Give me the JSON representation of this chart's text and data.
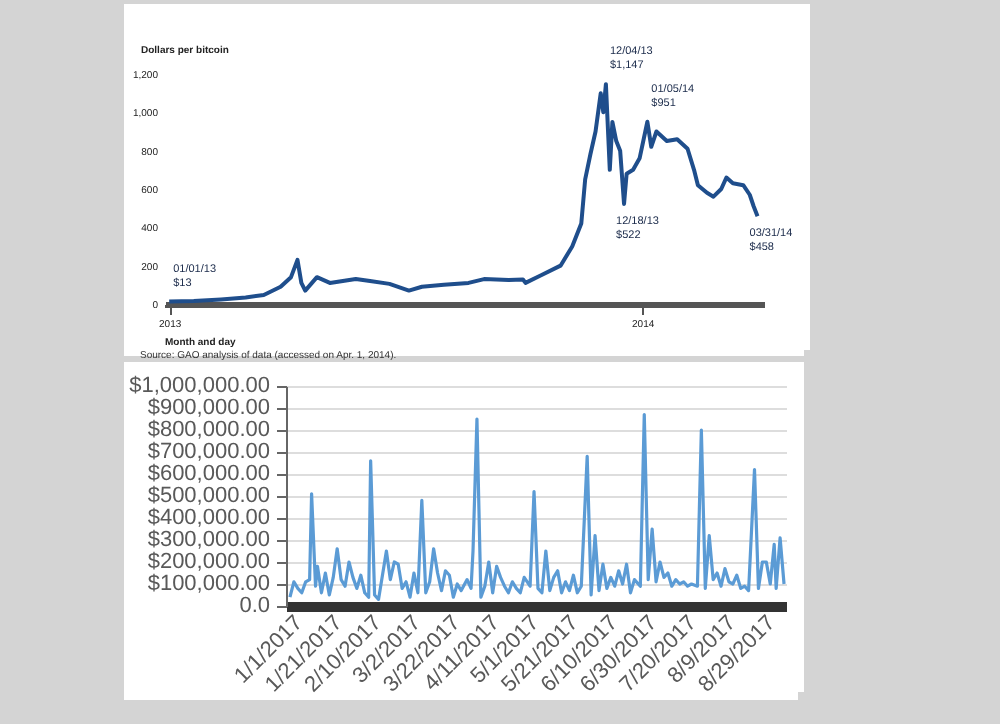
{
  "chart_data": [
    {
      "type": "line",
      "ylabel": "Dollars per bitcoin",
      "xlabel": "Month and day",
      "x": [
        "2013-01-01",
        "2013-01-20",
        "2013-02-10",
        "2013-03-01",
        "2013-03-15",
        "2013-03-28",
        "2013-04-05",
        "2013-04-10",
        "2013-04-13",
        "2013-04-16",
        "2013-04-25",
        "2013-05-05",
        "2013-05-15",
        "2013-05-25",
        "2013-06-05",
        "2013-06-20",
        "2013-07-05",
        "2013-07-15",
        "2013-08-01",
        "2013-08-20",
        "2013-09-01",
        "2013-09-20",
        "2013-10-01",
        "2013-10-03",
        "2013-10-15",
        "2013-10-30",
        "2013-11-08",
        "2013-11-15",
        "2013-11-18",
        "2013-11-22",
        "2013-11-26",
        "2013-11-30",
        "2013-12-02",
        "2013-12-04",
        "2013-12-07",
        "2013-12-09",
        "2013-12-12",
        "2013-12-15",
        "2013-12-18",
        "2013-12-20",
        "2013-12-25",
        "2013-12-30",
        "2014-01-05",
        "2014-01-08",
        "2014-01-12",
        "2014-01-20",
        "2014-01-28",
        "2014-02-05",
        "2014-02-10",
        "2014-02-13",
        "2014-02-20",
        "2014-02-25",
        "2014-03-03",
        "2014-03-07",
        "2014-03-12",
        "2014-03-20",
        "2014-03-25",
        "2014-03-28",
        "2014-03-31"
      ],
      "series": [
        {
          "color": "#1f4e8c",
          "values": [
            13,
            16,
            24,
            34,
            47,
            90,
            140,
            230,
            110,
            70,
            140,
            110,
            120,
            130,
            120,
            105,
            70,
            90,
            100,
            110,
            130,
            125,
            128,
            110,
            150,
            200,
            300,
            420,
            650,
            780,
            900,
            1100,
            1000,
            1147,
            700,
            950,
            850,
            800,
            522,
            680,
            700,
            760,
            951,
            820,
            900,
            850,
            860,
            810,
            700,
            620,
            580,
            560,
            600,
            660,
            630,
            620,
            570,
            510,
            458
          ]
        }
      ],
      "xlim": [
        "2012-12-28",
        "2014-04-05"
      ],
      "xticks": [
        {
          "value": "2013-01-01",
          "label": "2013"
        },
        {
          "value": "2014-01-01",
          "label": "2014"
        }
      ],
      "ylim": [
        0,
        1200
      ],
      "yticks": [
        0,
        200,
        400,
        600,
        800,
        {
          "value": 1000,
          "label": "1,000"
        },
        {
          "value": 1200,
          "label": "1,200"
        }
      ],
      "grid": false,
      "annotations": [
        {
          "text": "01/01/13\n$13",
          "x": "2013-01-01",
          "y": 13
        },
        {
          "text": "12/04/13\n$1,147",
          "x": "2013-12-04",
          "y": 1147
        },
        {
          "text": "12/18/13\n$522",
          "x": "2013-12-18",
          "y": 522
        },
        {
          "text": "01/05/14\n$951",
          "x": "2014-01-05",
          "y": 951
        },
        {
          "text": "03/31/14\n$458",
          "x": "2014-03-31",
          "y": 458
        },
        "Source: GAO analysis of data (accessed on Apr. 1, 2014)."
      ]
    },
    {
      "type": "line",
      "x": [
        "2017-01-01",
        "2017-01-03",
        "2017-01-05",
        "2017-01-07",
        "2017-01-09",
        "2017-01-11",
        "2017-01-12",
        "2017-01-14",
        "2017-01-15",
        "2017-01-17",
        "2017-01-19",
        "2017-01-21",
        "2017-01-23",
        "2017-01-25",
        "2017-01-27",
        "2017-01-29",
        "2017-01-31",
        "2017-02-02",
        "2017-02-04",
        "2017-02-06",
        "2017-02-08",
        "2017-02-10",
        "2017-02-11",
        "2017-02-13",
        "2017-02-15",
        "2017-02-17",
        "2017-02-19",
        "2017-02-21",
        "2017-02-23",
        "2017-02-25",
        "2017-02-27",
        "2017-03-01",
        "2017-03-03",
        "2017-03-05",
        "2017-03-07",
        "2017-03-09",
        "2017-03-11",
        "2017-03-13",
        "2017-03-15",
        "2017-03-17",
        "2017-03-19",
        "2017-03-21",
        "2017-03-23",
        "2017-03-25",
        "2017-03-27",
        "2017-03-29",
        "2017-04-01",
        "2017-04-03",
        "2017-04-04",
        "2017-04-06",
        "2017-04-08",
        "2017-04-10",
        "2017-04-12",
        "2017-04-14",
        "2017-04-16",
        "2017-04-18",
        "2017-04-20",
        "2017-04-22",
        "2017-04-24",
        "2017-04-26",
        "2017-04-28",
        "2017-04-30",
        "2017-05-03",
        "2017-05-05",
        "2017-05-07",
        "2017-05-09",
        "2017-05-11",
        "2017-05-13",
        "2017-05-15",
        "2017-05-17",
        "2017-05-19",
        "2017-05-21",
        "2017-05-23",
        "2017-05-25",
        "2017-05-27",
        "2017-05-29",
        "2017-06-01",
        "2017-06-03",
        "2017-06-05",
        "2017-06-07",
        "2017-06-09",
        "2017-06-11",
        "2017-06-13",
        "2017-06-15",
        "2017-06-17",
        "2017-06-19",
        "2017-06-21",
        "2017-06-23",
        "2017-06-25",
        "2017-06-28",
        "2017-06-30",
        "2017-07-02",
        "2017-07-04",
        "2017-07-06",
        "2017-07-08",
        "2017-07-10",
        "2017-07-12",
        "2017-07-14",
        "2017-07-16",
        "2017-07-18",
        "2017-07-20",
        "2017-07-22",
        "2017-07-24",
        "2017-07-27",
        "2017-07-29",
        "2017-07-31",
        "2017-08-02",
        "2017-08-04",
        "2017-08-06",
        "2017-08-08",
        "2017-08-10",
        "2017-08-12",
        "2017-08-14",
        "2017-08-16",
        "2017-08-18",
        "2017-08-20",
        "2017-08-22",
        "2017-08-25",
        "2017-08-27",
        "2017-08-29",
        "2017-08-31",
        "2017-09-02",
        "2017-09-04",
        "2017-09-05",
        "2017-09-07",
        "2017-09-09"
      ],
      "series": [
        {
          "color": "#5b9bd5",
          "values": [
            40000,
            110000,
            80000,
            60000,
            110000,
            120000,
            510000,
            90000,
            180000,
            60000,
            150000,
            50000,
            130000,
            260000,
            120000,
            90000,
            200000,
            130000,
            80000,
            140000,
            60000,
            40000,
            660000,
            50000,
            30000,
            140000,
            250000,
            120000,
            200000,
            190000,
            80000,
            110000,
            40000,
            150000,
            60000,
            480000,
            60000,
            110000,
            260000,
            150000,
            70000,
            160000,
            140000,
            40000,
            100000,
            70000,
            120000,
            80000,
            250000,
            850000,
            40000,
            90000,
            200000,
            60000,
            180000,
            130000,
            90000,
            60000,
            110000,
            80000,
            60000,
            130000,
            90000,
            520000,
            80000,
            60000,
            250000,
            70000,
            130000,
            160000,
            60000,
            110000,
            70000,
            140000,
            60000,
            90000,
            680000,
            50000,
            320000,
            70000,
            190000,
            80000,
            130000,
            90000,
            160000,
            100000,
            190000,
            60000,
            120000,
            90000,
            870000,
            120000,
            350000,
            110000,
            200000,
            130000,
            150000,
            90000,
            120000,
            100000,
            110000,
            90000,
            100000,
            90000,
            800000,
            80000,
            320000,
            120000,
            150000,
            90000,
            170000,
            110000,
            100000,
            140000,
            80000,
            90000,
            70000,
            620000,
            80000,
            200000,
            200000,
            100000,
            280000,
            80000,
            310000,
            100000
          ]
        }
      ],
      "xlim": [
        "2016-12-30",
        "2017-09-10"
      ],
      "xticks": [
        {
          "value": "2017-01-01",
          "label": "1/1/2017"
        },
        {
          "value": "2017-01-21",
          "label": "1/21/2017"
        },
        {
          "value": "2017-02-10",
          "label": "2/10/2017"
        },
        {
          "value": "2017-03-02",
          "label": "3/2/2017"
        },
        {
          "value": "2017-03-22",
          "label": "3/22/2017"
        },
        {
          "value": "2017-04-11",
          "label": "4/11/2017"
        },
        {
          "value": "2017-05-01",
          "label": "5/1/2017"
        },
        {
          "value": "2017-05-21",
          "label": "5/21/2017"
        },
        {
          "value": "2017-06-10",
          "label": "6/10/2017"
        },
        {
          "value": "2017-06-30",
          "label": "6/30/2017"
        },
        {
          "value": "2017-07-20",
          "label": "7/20/2017"
        },
        {
          "value": "2017-08-09",
          "label": "8/9/2017"
        },
        {
          "value": "2017-08-29",
          "label": "8/29/2017"
        }
      ],
      "ylim": [
        0,
        1000000
      ],
      "yticks": [
        {
          "value": 0,
          "label": "0.0"
        },
        {
          "value": 100000,
          "label": "$100,000.00"
        },
        {
          "value": 200000,
          "label": "$200,000.00"
        },
        {
          "value": 300000,
          "label": "$300,000.00"
        },
        {
          "value": 400000,
          "label": "$400,000.00"
        },
        {
          "value": 500000,
          "label": "$500,000.00"
        },
        {
          "value": 600000,
          "label": "$600,000.00"
        },
        {
          "value": 700000,
          "label": "$700,000.00"
        },
        {
          "value": 800000,
          "label": "$800,000.00"
        },
        {
          "value": 900000,
          "label": "$900,000.00"
        },
        {
          "value": 1000000,
          "label": "$1,000,000.00"
        }
      ],
      "grid": "y"
    }
  ]
}
